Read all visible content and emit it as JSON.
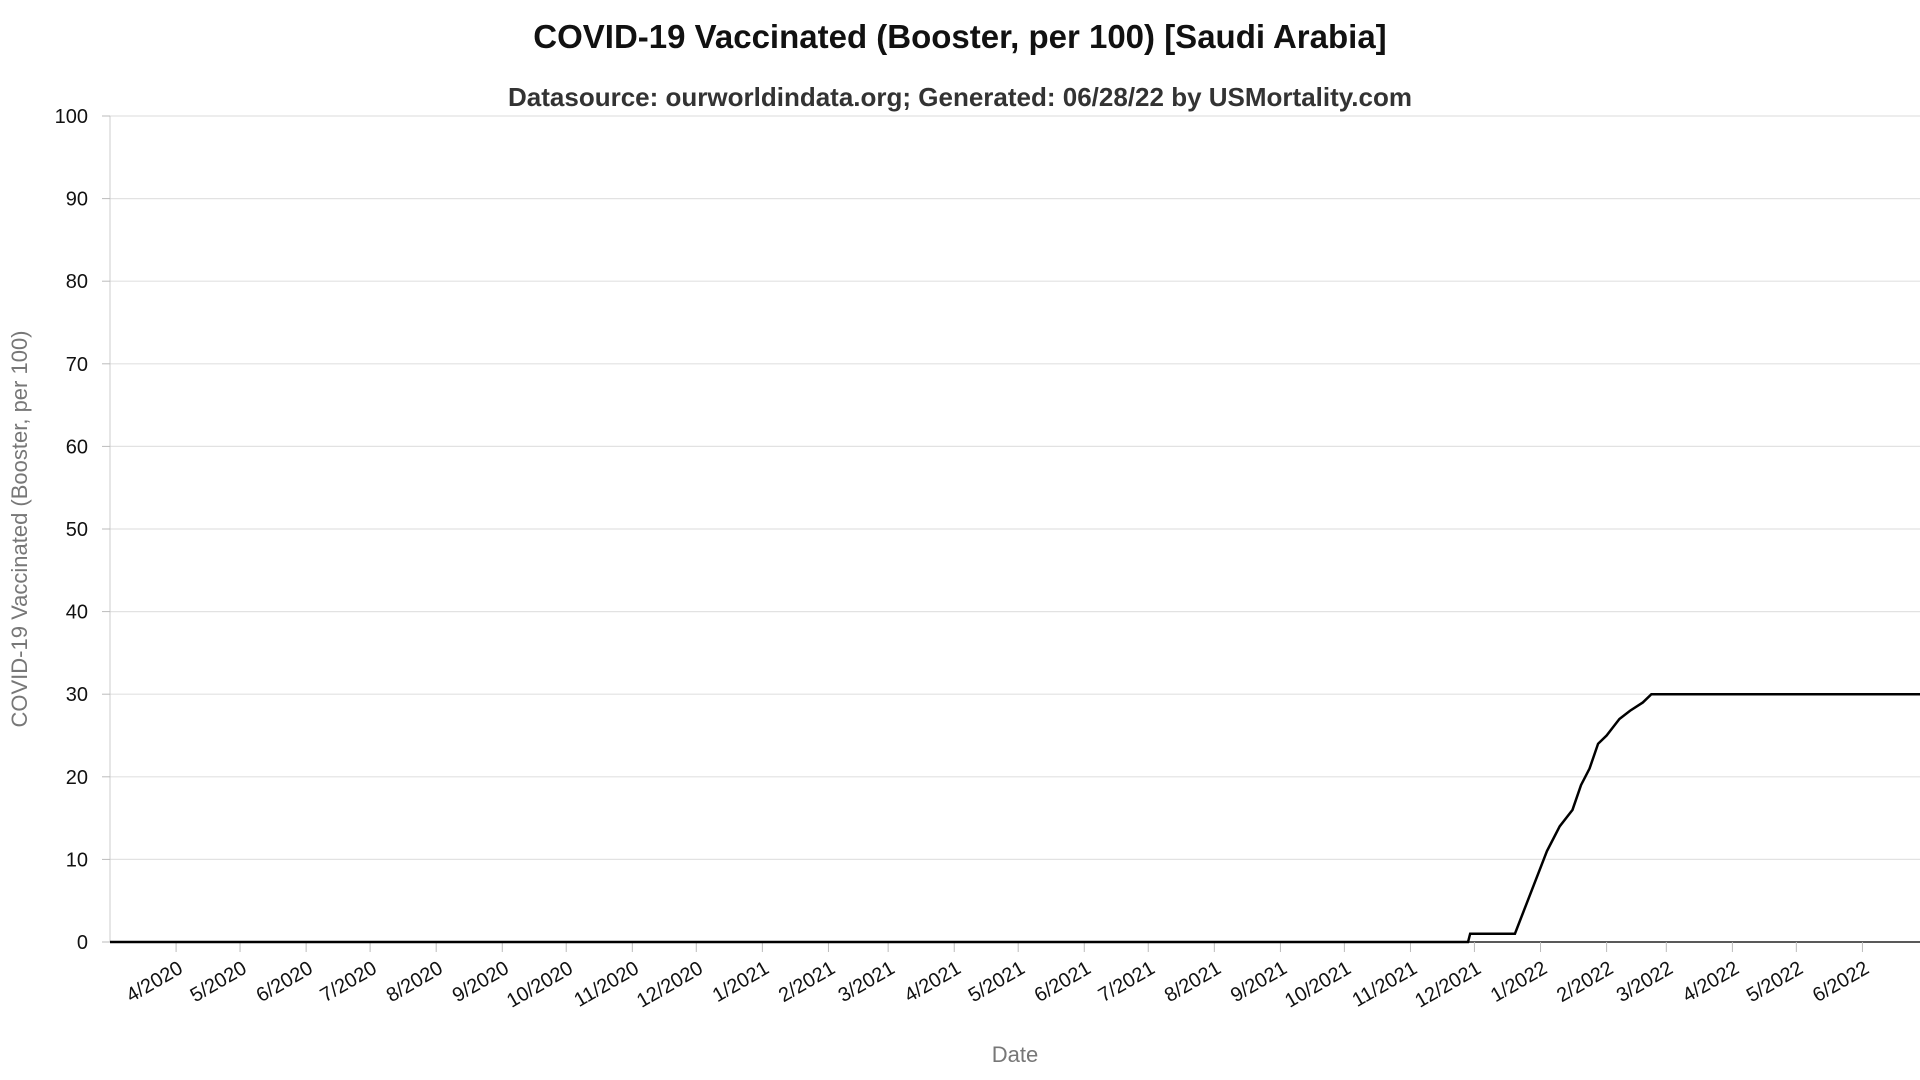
{
  "chart_data": {
    "type": "line",
    "title": "COVID-19 Vaccinated (Booster, per 100) [Saudi Arabia]",
    "subtitle": "Datasource: ourworldindata.org; Generated: 06/28/22 by USMortality.com",
    "xlabel": "Date",
    "ylabel": "COVID-19 Vaccinated (Booster, per 100)",
    "x_range": [
      "2020-03-01",
      "2022-06-28"
    ],
    "ylim": [
      0,
      100
    ],
    "y_ticks": [
      0,
      10,
      20,
      30,
      40,
      50,
      60,
      70,
      80,
      90,
      100
    ],
    "x_ticks": [
      {
        "date": "2020-04-01",
        "label": "4/2020"
      },
      {
        "date": "2020-05-01",
        "label": "5/2020"
      },
      {
        "date": "2020-06-01",
        "label": "6/2020"
      },
      {
        "date": "2020-07-01",
        "label": "7/2020"
      },
      {
        "date": "2020-08-01",
        "label": "8/2020"
      },
      {
        "date": "2020-09-01",
        "label": "9/2020"
      },
      {
        "date": "2020-10-01",
        "label": "10/2020"
      },
      {
        "date": "2020-11-01",
        "label": "11/2020"
      },
      {
        "date": "2020-12-01",
        "label": "12/2020"
      },
      {
        "date": "2021-01-01",
        "label": "1/2021"
      },
      {
        "date": "2021-02-01",
        "label": "2/2021"
      },
      {
        "date": "2021-03-01",
        "label": "3/2021"
      },
      {
        "date": "2021-04-01",
        "label": "4/2021"
      },
      {
        "date": "2021-05-01",
        "label": "5/2021"
      },
      {
        "date": "2021-06-01",
        "label": "6/2021"
      },
      {
        "date": "2021-07-01",
        "label": "7/2021"
      },
      {
        "date": "2021-08-01",
        "label": "8/2021"
      },
      {
        "date": "2021-09-01",
        "label": "9/2021"
      },
      {
        "date": "2021-10-01",
        "label": "10/2021"
      },
      {
        "date": "2021-11-01",
        "label": "11/2021"
      },
      {
        "date": "2021-12-01",
        "label": "12/2021"
      },
      {
        "date": "2022-01-01",
        "label": "1/2022"
      },
      {
        "date": "2022-02-01",
        "label": "2/2022"
      },
      {
        "date": "2022-03-01",
        "label": "3/2022"
      },
      {
        "date": "2022-04-01",
        "label": "4/2022"
      },
      {
        "date": "2022-05-01",
        "label": "5/2022"
      },
      {
        "date": "2022-06-01",
        "label": "6/2022"
      }
    ],
    "grid": true,
    "line_color": "#000000",
    "series": [
      {
        "points": [
          [
            "2020-03-01",
            0
          ],
          [
            "2021-11-28",
            0
          ],
          [
            "2021-11-29",
            1
          ],
          [
            "2021-12-20",
            1
          ],
          [
            "2021-12-23",
            3
          ],
          [
            "2021-12-26",
            5
          ],
          [
            "2021-12-29",
            7
          ],
          [
            "2022-01-01",
            9
          ],
          [
            "2022-01-04",
            11
          ],
          [
            "2022-01-07",
            12.5
          ],
          [
            "2022-01-10",
            14
          ],
          [
            "2022-01-13",
            15
          ],
          [
            "2022-01-16",
            16
          ],
          [
            "2022-01-20",
            19
          ],
          [
            "2022-01-24",
            21
          ],
          [
            "2022-01-28",
            24
          ],
          [
            "2022-02-01",
            25
          ],
          [
            "2022-02-04",
            26
          ],
          [
            "2022-02-07",
            27
          ],
          [
            "2022-02-12",
            28
          ],
          [
            "2022-02-18",
            29
          ],
          [
            "2022-02-22",
            30
          ],
          [
            "2022-06-28",
            30
          ]
        ]
      }
    ]
  }
}
